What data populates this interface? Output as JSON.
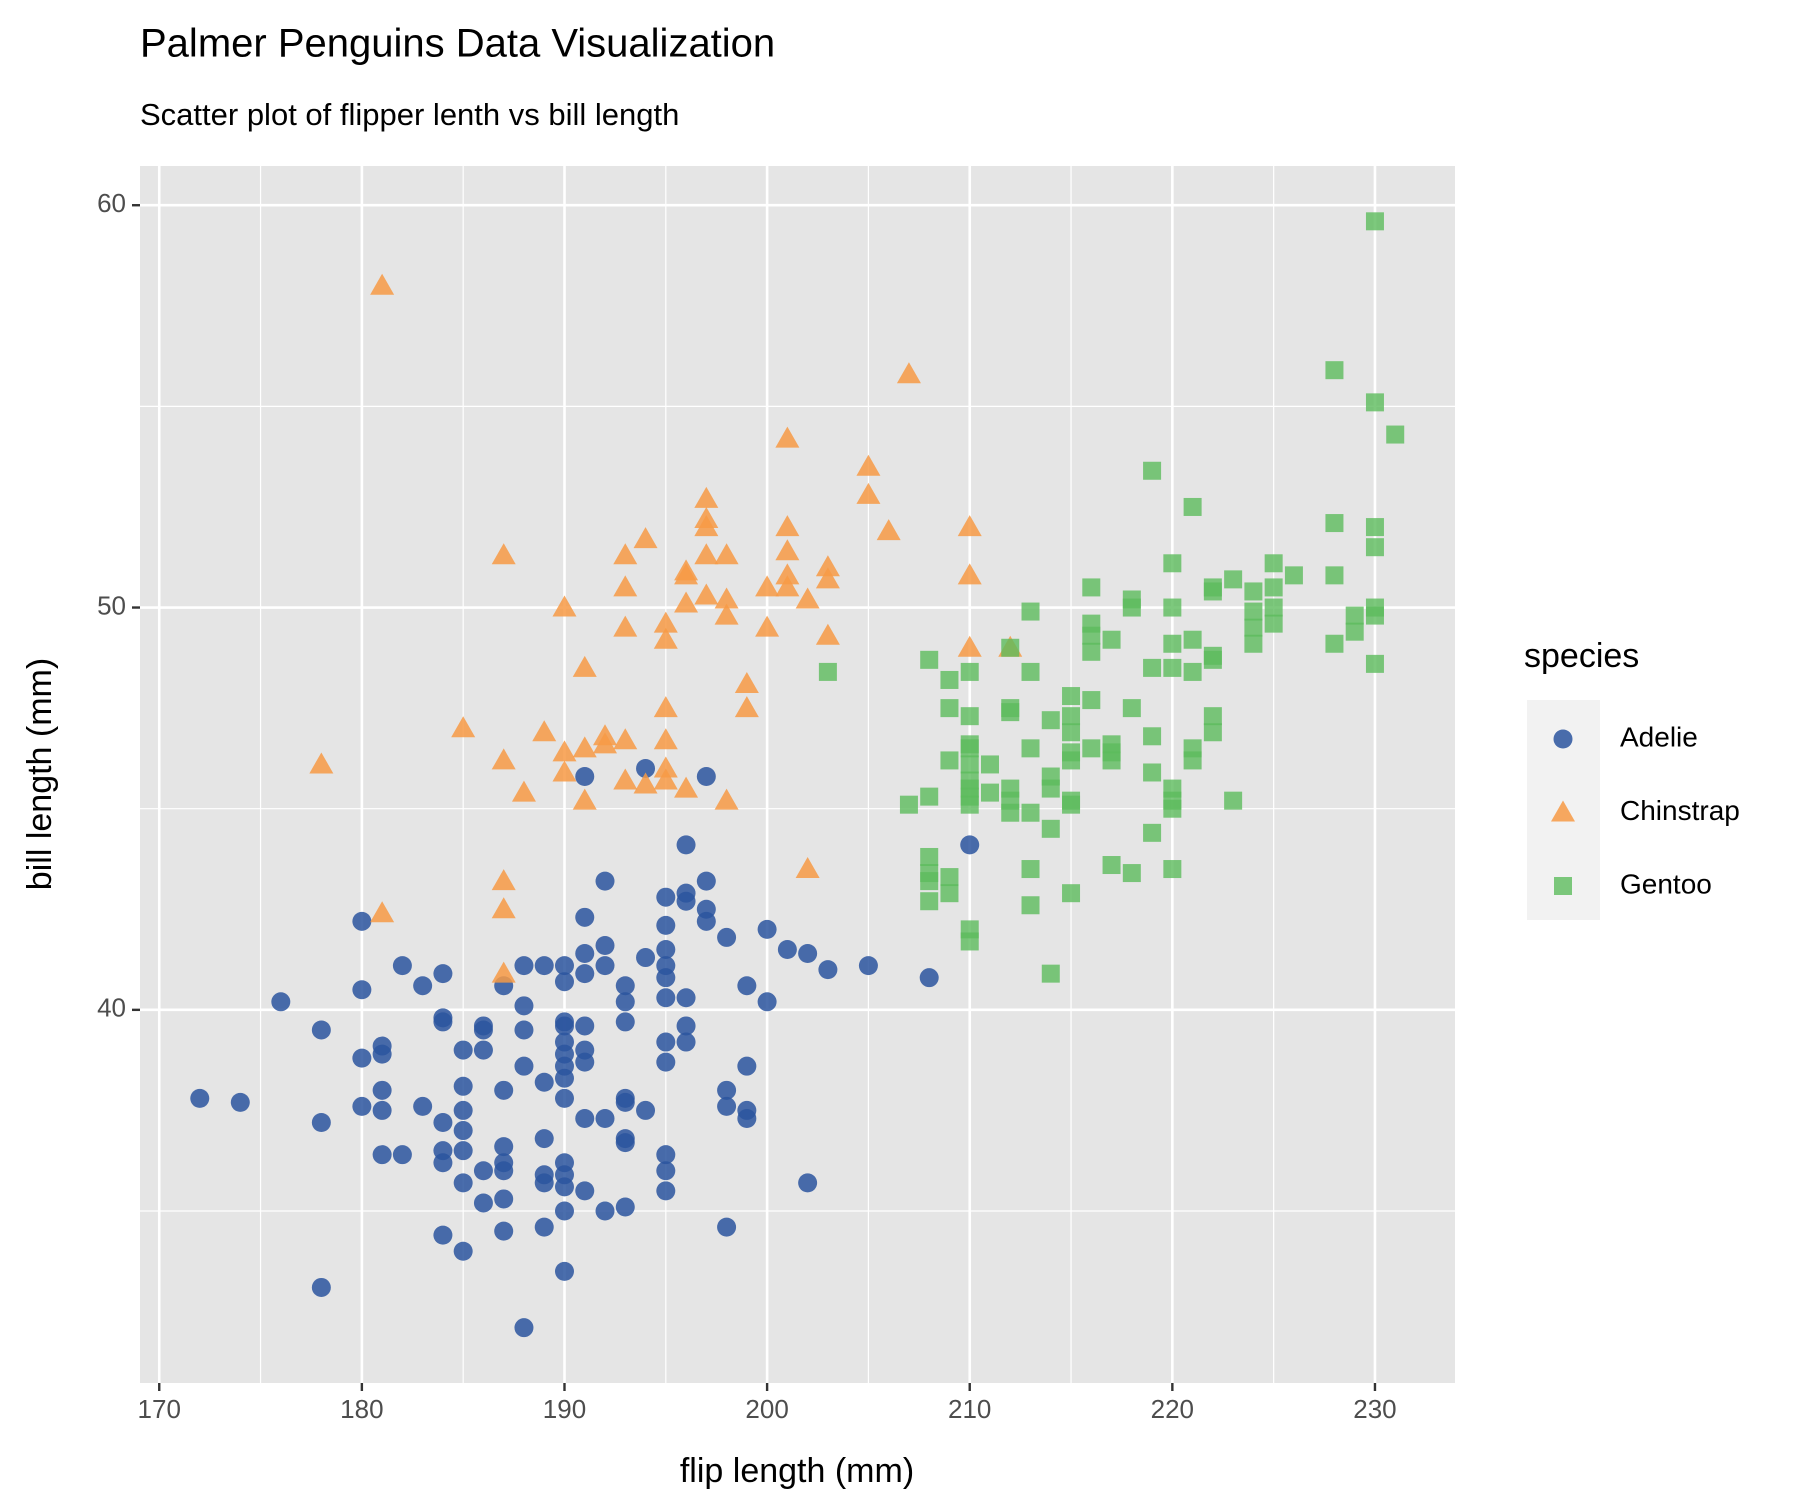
{
  "chart_data": {
    "type": "scatter",
    "title": "Palmer Penguins Data Visualization",
    "subtitle": "Scatter plot of flipper lenth vs bill length",
    "x_label": "flip length (mm)",
    "y_label": "bill length (mm)",
    "legend_title": "species",
    "legend": "right",
    "grid": true,
    "xlim": [
      169.05,
      233.95
    ],
    "ylim": [
      30.725,
      60.975
    ],
    "xticks": [
      170,
      180,
      190,
      200,
      210,
      220,
      230
    ],
    "yticks": [
      40,
      50,
      60
    ],
    "x_minor_grid": [
      175,
      185,
      195,
      205,
      215,
      225
    ],
    "y_minor_grid": [
      35,
      45,
      55
    ],
    "series": [
      {
        "name": "Adelie",
        "color": "#2b559f",
        "shape": "circle",
        "x": [
          172,
          174,
          176,
          178,
          178,
          178,
          180,
          180,
          180,
          180,
          181,
          181,
          181,
          181,
          181,
          182,
          182,
          183,
          183,
          184,
          184,
          184,
          184,
          184,
          184,
          184,
          185,
          185,
          185,
          185,
          185,
          185,
          185,
          186,
          186,
          186,
          186,
          186,
          187,
          187,
          187,
          187,
          187,
          187,
          187,
          188,
          188,
          188,
          188,
          188,
          189,
          189,
          189,
          189,
          189,
          189,
          190,
          190,
          190,
          190,
          190,
          190,
          190,
          190,
          190,
          190,
          190,
          190,
          190,
          190,
          191,
          191,
          191,
          191,
          191,
          191,
          191,
          191,
          191,
          192,
          192,
          192,
          192,
          192,
          193,
          193,
          193,
          193,
          193,
          193,
          193,
          193,
          194,
          194,
          194,
          195,
          195,
          195,
          195,
          195,
          195,
          195,
          195,
          195,
          195,
          195,
          196,
          196,
          196,
          196,
          196,
          196,
          197,
          197,
          197,
          197,
          198,
          198,
          198,
          198,
          199,
          199,
          199,
          199,
          200,
          200,
          201,
          202,
          202,
          203,
          205,
          208,
          210
        ],
        "values": [
          37.8,
          37.7,
          40.2,
          39.5,
          37.2,
          33.1,
          42.2,
          40.5,
          38.8,
          37.6,
          39.1,
          38.9,
          38.0,
          37.5,
          36.4,
          41.1,
          36.4,
          40.6,
          37.6,
          40.9,
          39.8,
          39.7,
          37.2,
          36.5,
          36.2,
          34.4,
          39.0,
          38.1,
          37.5,
          37.0,
          36.5,
          35.7,
          34.0,
          39.6,
          39.5,
          39.0,
          36.0,
          35.2,
          40.6,
          38.0,
          36.6,
          36.2,
          36.0,
          35.3,
          34.5,
          41.1,
          40.1,
          39.5,
          38.6,
          32.1,
          41.1,
          38.2,
          36.8,
          35.9,
          35.7,
          34.6,
          41.1,
          40.7,
          39.7,
          39.6,
          39.2,
          38.9,
          38.6,
          38.3,
          37.8,
          36.2,
          35.9,
          35.6,
          35.0,
          33.5,
          45.8,
          42.3,
          41.4,
          40.9,
          39.6,
          39.0,
          38.7,
          37.3,
          35.5,
          43.2,
          41.6,
          41.1,
          37.3,
          35.0,
          40.6,
          40.2,
          39.7,
          37.8,
          37.7,
          36.8,
          36.7,
          35.1,
          46.0,
          41.3,
          37.5,
          42.8,
          42.1,
          41.5,
          41.1,
          40.8,
          40.3,
          39.2,
          38.7,
          36.4,
          36.0,
          35.5,
          44.1,
          42.9,
          42.7,
          40.3,
          39.6,
          39.2,
          45.8,
          43.2,
          42.5,
          42.2,
          41.8,
          38.0,
          37.6,
          34.6,
          40.6,
          38.6,
          37.5,
          37.3,
          42.0,
          40.2,
          41.5,
          41.4,
          35.7,
          41.0,
          41.1,
          40.8,
          44.1
        ]
      },
      {
        "name": "Chinstrap",
        "color": "#f79a45",
        "shape": "triangle",
        "x": [
          178,
          181,
          181,
          185,
          187,
          187,
          187,
          187,
          187,
          188,
          189,
          190,
          190,
          190,
          191,
          191,
          191,
          192,
          192,
          193,
          193,
          193,
          193,
          193,
          194,
          194,
          195,
          195,
          195,
          195,
          195,
          195,
          196,
          196,
          196,
          196,
          197,
          197,
          197,
          197,
          197,
          198,
          198,
          198,
          198,
          199,
          199,
          200,
          200,
          201,
          201,
          201,
          201,
          201,
          202,
          202,
          203,
          203,
          203,
          205,
          205,
          206,
          207,
          210,
          210,
          210,
          212
        ],
        "values": [
          46.1,
          58.0,
          42.4,
          47.0,
          51.3,
          46.2,
          43.2,
          42.5,
          40.9,
          45.4,
          46.9,
          50.0,
          46.4,
          45.9,
          48.5,
          46.5,
          45.2,
          46.8,
          46.6,
          51.3,
          50.5,
          49.5,
          46.7,
          45.7,
          51.7,
          45.6,
          49.6,
          49.2,
          47.5,
          46.7,
          46.0,
          45.7,
          50.9,
          50.8,
          50.1,
          45.5,
          52.7,
          52.2,
          52.0,
          51.3,
          50.3,
          51.3,
          50.2,
          49.8,
          45.2,
          48.1,
          47.5,
          50.5,
          49.5,
          54.2,
          52.0,
          51.4,
          50.8,
          50.5,
          50.2,
          43.5,
          51.0,
          50.7,
          49.3,
          53.5,
          52.8,
          51.9,
          55.8,
          52.0,
          50.8,
          49.0,
          49.0
        ]
      },
      {
        "name": "Gentoo",
        "color": "#5cbb5c",
        "shape": "square",
        "x": [
          203,
          207,
          208,
          208,
          208,
          208,
          208,
          208,
          209,
          209,
          209,
          209,
          209,
          210,
          210,
          210,
          210,
          210,
          210,
          210,
          210,
          210,
          210,
          210,
          211,
          211,
          212,
          212,
          212,
          212,
          212,
          212,
          213,
          213,
          213,
          213,
          213,
          213,
          214,
          214,
          214,
          214,
          214,
          215,
          215,
          215,
          215,
          215,
          215,
          215,
          215,
          216,
          216,
          216,
          216,
          216,
          216,
          217,
          217,
          217,
          217,
          217,
          218,
          218,
          218,
          218,
          219,
          219,
          219,
          219,
          219,
          220,
          220,
          220,
          220,
          220,
          220,
          220,
          220,
          221,
          221,
          221,
          221,
          221,
          222,
          222,
          222,
          222,
          222,
          222,
          223,
          223,
          224,
          224,
          224,
          224,
          225,
          225,
          225,
          225,
          226,
          228,
          228,
          228,
          228,
          229,
          229,
          230,
          230,
          230,
          230,
          230,
          230,
          230,
          231
        ],
        "values": [
          48.4,
          45.1,
          48.7,
          45.3,
          43.8,
          43.4,
          43.2,
          42.7,
          48.2,
          47.5,
          46.2,
          43.3,
          42.9,
          48.4,
          47.3,
          46.6,
          46.5,
          46.1,
          45.7,
          45.5,
          45.3,
          45.1,
          42.0,
          41.7,
          46.1,
          45.4,
          49.0,
          47.5,
          47.4,
          45.5,
          45.2,
          44.9,
          49.9,
          48.4,
          46.5,
          44.9,
          43.5,
          42.6,
          47.2,
          45.8,
          45.5,
          44.5,
          40.9,
          47.8,
          47.3,
          46.9,
          46.4,
          46.2,
          45.2,
          45.1,
          42.9,
          50.5,
          49.6,
          49.3,
          48.9,
          47.7,
          46.5,
          49.2,
          46.6,
          46.4,
          46.2,
          43.6,
          50.2,
          50.0,
          47.5,
          43.4,
          53.4,
          48.5,
          46.8,
          45.9,
          44.4,
          51.1,
          50.0,
          49.1,
          48.5,
          45.5,
          45.2,
          45.0,
          43.5,
          52.5,
          49.2,
          48.4,
          46.5,
          46.2,
          50.5,
          50.4,
          48.8,
          48.7,
          47.3,
          46.9,
          50.7,
          45.2,
          50.4,
          49.9,
          49.5,
          49.1,
          51.1,
          50.5,
          50.0,
          49.6,
          50.8,
          55.9,
          52.1,
          50.8,
          49.1,
          49.8,
          49.4,
          59.6,
          55.1,
          52.0,
          51.5,
          50.0,
          49.8,
          48.6,
          54.3
        ]
      }
    ]
  }
}
